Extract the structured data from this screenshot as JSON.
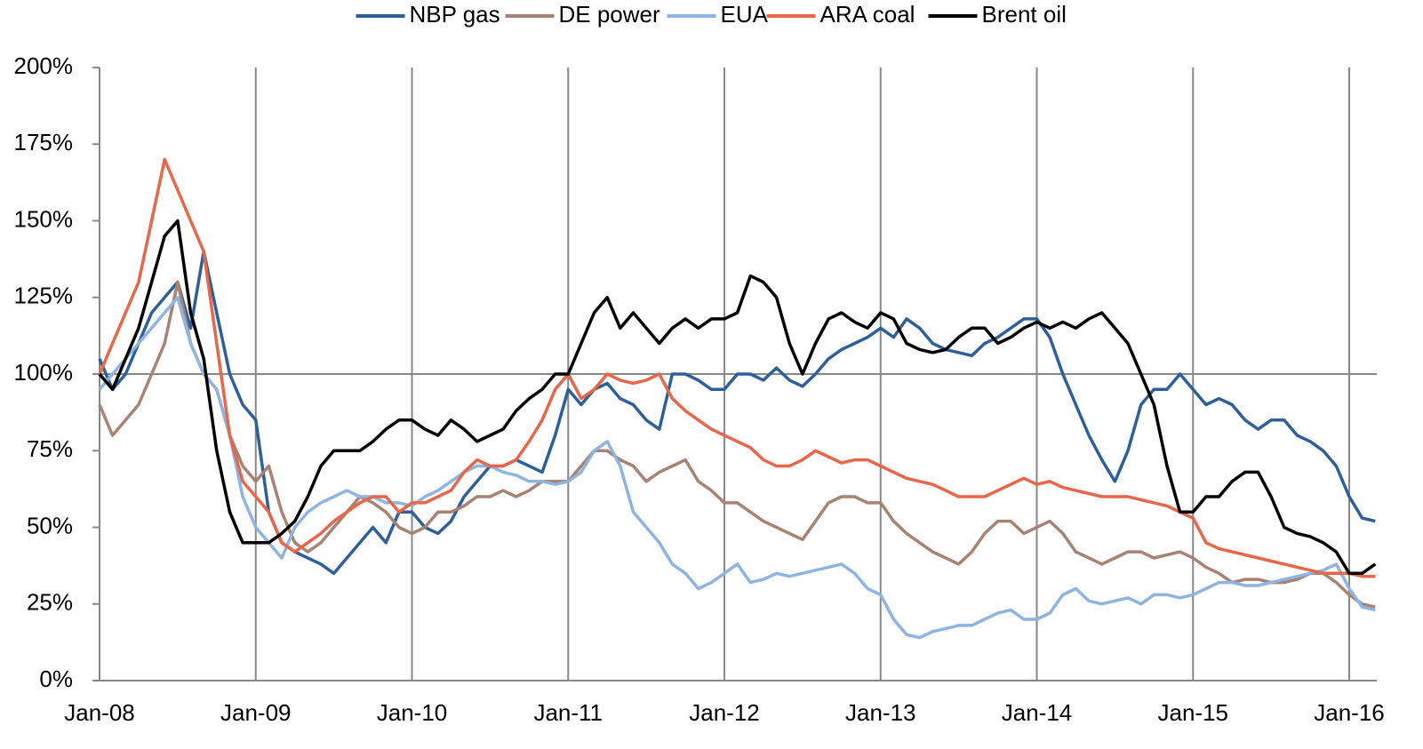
{
  "chart_data": {
    "type": "line",
    "categories": [
      "Jan-08",
      null,
      null,
      null,
      null,
      null,
      null,
      null,
      null,
      null,
      null,
      null,
      "Jan-09",
      null,
      null,
      null,
      null,
      null,
      null,
      null,
      null,
      null,
      null,
      null,
      "Jan-10",
      null,
      null,
      null,
      null,
      null,
      null,
      null,
      null,
      null,
      null,
      null,
      "Jan-11",
      null,
      null,
      null,
      null,
      null,
      null,
      null,
      null,
      null,
      null,
      null,
      "Jan-12",
      null,
      null,
      null,
      null,
      null,
      null,
      null,
      null,
      null,
      null,
      null,
      "Jan-13",
      null,
      null,
      null,
      null,
      null,
      null,
      null,
      null,
      null,
      null,
      null,
      "Jan-14",
      null,
      null,
      null,
      null,
      null,
      null,
      null,
      null,
      null,
      null,
      null,
      "Jan-15",
      null,
      null,
      null,
      null,
      null,
      null,
      null,
      null,
      null,
      null,
      null,
      "Jan-16",
      null,
      null
    ],
    "series": [
      {
        "name": "NBP gas",
        "color": "#2e5f9a",
        "values": [
          105,
          95,
          100,
          110,
          120,
          125,
          130,
          115,
          140,
          120,
          100,
          90,
          85,
          55,
          45,
          42,
          40,
          38,
          35,
          40,
          45,
          50,
          45,
          55,
          55,
          50,
          48,
          52,
          60,
          65,
          70,
          70,
          72,
          70,
          68,
          80,
          95,
          90,
          95,
          97,
          92,
          90,
          85,
          82,
          100,
          100,
          98,
          95,
          95,
          100,
          100,
          98,
          102,
          98,
          96,
          100,
          105,
          108,
          110,
          112,
          115,
          112,
          118,
          115,
          110,
          108,
          107,
          106,
          110,
          112,
          115,
          118,
          118,
          112,
          100,
          90,
          80,
          72,
          65,
          75,
          90,
          95,
          95,
          100,
          95,
          90,
          92,
          90,
          85,
          82,
          85,
          85,
          80,
          78,
          75,
          70,
          60,
          53,
          52
        ]
      },
      {
        "name": "DE power",
        "color": "#a88273",
        "values": [
          90,
          80,
          85,
          90,
          100,
          110,
          130,
          110,
          100,
          95,
          80,
          70,
          65,
          70,
          55,
          45,
          42,
          45,
          50,
          55,
          60,
          58,
          55,
          50,
          48,
          50,
          55,
          55,
          57,
          60,
          60,
          62,
          60,
          62,
          65,
          65,
          65,
          70,
          75,
          75,
          72,
          70,
          65,
          68,
          70,
          72,
          65,
          62,
          58,
          58,
          55,
          52,
          50,
          48,
          46,
          52,
          58,
          60,
          60,
          58,
          58,
          52,
          48,
          45,
          42,
          40,
          38,
          42,
          48,
          52,
          52,
          48,
          50,
          52,
          48,
          42,
          40,
          38,
          40,
          42,
          42,
          40,
          41,
          42,
          40,
          37,
          35,
          32,
          33,
          33,
          32,
          32,
          33,
          35,
          35,
          32,
          28,
          25,
          24
        ]
      },
      {
        "name": "EUA",
        "color": "#8db4e2",
        "values": [
          95,
          100,
          105,
          110,
          115,
          120,
          125,
          110,
          100,
          95,
          80,
          60,
          50,
          45,
          40,
          50,
          55,
          58,
          60,
          62,
          60,
          60,
          58,
          58,
          57,
          60,
          62,
          65,
          68,
          70,
          70,
          68,
          67,
          65,
          65,
          64,
          65,
          68,
          75,
          78,
          70,
          55,
          50,
          45,
          38,
          35,
          30,
          32,
          35,
          38,
          32,
          33,
          35,
          34,
          35,
          36,
          37,
          38,
          35,
          30,
          28,
          20,
          15,
          14,
          16,
          17,
          18,
          18,
          20,
          22,
          23,
          20,
          20,
          22,
          28,
          30,
          26,
          25,
          26,
          27,
          25,
          28,
          28,
          27,
          28,
          30,
          32,
          32,
          31,
          31,
          32,
          33,
          34,
          35,
          36,
          38,
          30,
          24,
          23
        ]
      },
      {
        "name": "ARA coal",
        "color": "#e8664a",
        "values": [
          100,
          110,
          120,
          130,
          150,
          170,
          160,
          150,
          140,
          110,
          80,
          65,
          60,
          55,
          45,
          42,
          45,
          48,
          52,
          55,
          58,
          60,
          60,
          55,
          58,
          58,
          60,
          62,
          68,
          72,
          70,
          70,
          72,
          78,
          85,
          95,
          100,
          92,
          95,
          100,
          98,
          97,
          98,
          100,
          92,
          88,
          85,
          82,
          80,
          78,
          76,
          72,
          70,
          70,
          72,
          75,
          73,
          71,
          72,
          72,
          70,
          68,
          66,
          65,
          64,
          62,
          60,
          60,
          60,
          62,
          64,
          66,
          64,
          65,
          63,
          62,
          61,
          60,
          60,
          60,
          59,
          58,
          57,
          55,
          53,
          45,
          43,
          42,
          41,
          40,
          39,
          38,
          37,
          36,
          35,
          35,
          35,
          34,
          34
        ]
      },
      {
        "name": "Brent oil",
        "color": "#000000",
        "values": [
          100,
          95,
          105,
          115,
          130,
          145,
          150,
          120,
          105,
          75,
          55,
          45,
          45,
          45,
          48,
          52,
          60,
          70,
          75,
          75,
          75,
          78,
          82,
          85,
          85,
          82,
          80,
          85,
          82,
          78,
          80,
          82,
          88,
          92,
          95,
          100,
          100,
          110,
          120,
          125,
          115,
          120,
          115,
          110,
          115,
          118,
          115,
          118,
          118,
          120,
          132,
          130,
          125,
          110,
          100,
          110,
          118,
          120,
          117,
          115,
          120,
          118,
          110,
          108,
          107,
          108,
          112,
          115,
          115,
          110,
          112,
          115,
          117,
          115,
          117,
          115,
          118,
          120,
          115,
          110,
          100,
          90,
          70,
          55,
          55,
          60,
          60,
          65,
          68,
          68,
          60,
          50,
          48,
          47,
          45,
          42,
          35,
          35,
          38
        ]
      }
    ],
    "ylim": [
      0,
      200
    ],
    "yticks": [
      {
        "value": 0,
        "label": "0%"
      },
      {
        "value": 25,
        "label": "25%"
      },
      {
        "value": 50,
        "label": "50%"
      },
      {
        "value": 75,
        "label": "75%"
      },
      {
        "value": 100,
        "label": "100%"
      },
      {
        "value": 125,
        "label": "125%"
      },
      {
        "value": 150,
        "label": "150%"
      },
      {
        "value": 175,
        "label": "175%"
      },
      {
        "value": 200,
        "label": "200%"
      }
    ],
    "reference_line": 100,
    "grid": "x",
    "legend": "top"
  }
}
